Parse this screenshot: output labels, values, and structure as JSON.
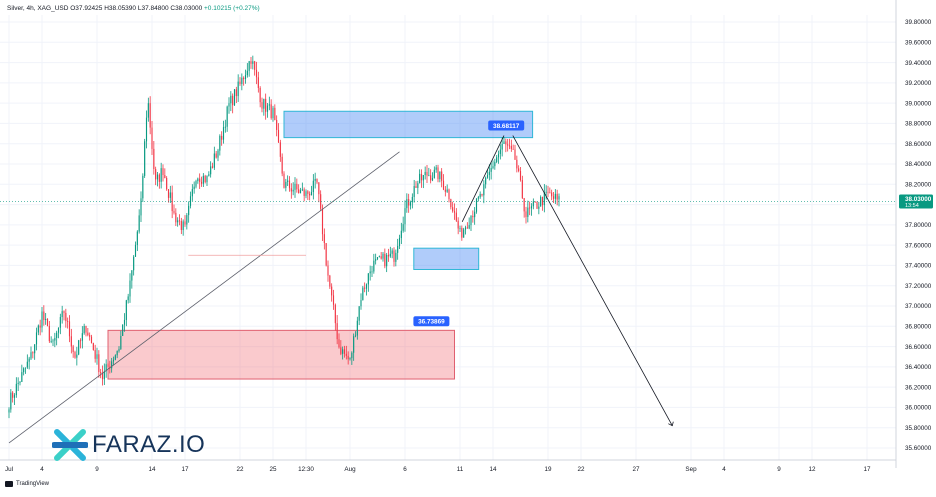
{
  "header": {
    "symbol": "Silver, 4h, XAG_USD",
    "open": "O37.92425",
    "high": "H38.05390",
    "low": "L37.84800",
    "close": "C38.03000",
    "change": "+0.10215 (+0.27%)"
  },
  "price_tag": {
    "value": "38.03000",
    "countdown": "13:54"
  },
  "watermark": {
    "brand": "FARAZ.IO"
  },
  "footer": {
    "tradingview": "TradingView"
  },
  "chart_data": {
    "type": "candlestick",
    "y_range": [
      35.5,
      39.9
    ],
    "y_ticks": [
      "39.80000",
      "39.60000",
      "39.40000",
      "39.20000",
      "39.00000",
      "38.80000",
      "38.60000",
      "38.40000",
      "38.20000",
      "38.00000",
      "37.80000",
      "37.60000",
      "37.40000",
      "37.20000",
      "37.00000",
      "36.80000",
      "36.60000",
      "36.40000",
      "36.20000",
      "36.00000",
      "35.80000",
      "35.60000"
    ],
    "x_ticks": [
      {
        "label": "Jul",
        "day": 1
      },
      {
        "label": "4",
        "day": 4
      },
      {
        "label": "9",
        "day": 9
      },
      {
        "label": "14",
        "day": 14
      },
      {
        "label": "17",
        "day": 17
      },
      {
        "label": "22",
        "day": 22
      },
      {
        "label": "25",
        "day": 25
      },
      {
        "label": "12:30",
        "day": 28
      },
      {
        "label": "Aug",
        "day": 32
      },
      {
        "label": "6",
        "day": 37
      },
      {
        "label": "11",
        "day": 42
      },
      {
        "label": "14",
        "day": 45
      },
      {
        "label": "19",
        "day": 50
      },
      {
        "label": "22",
        "day": 53
      },
      {
        "label": "27",
        "day": 58
      },
      {
        "label": "Sep",
        "day": 63
      },
      {
        "label": "4",
        "day": 66
      },
      {
        "label": "9",
        "day": 71
      },
      {
        "label": "12",
        "day": 74
      },
      {
        "label": "17",
        "day": 79
      }
    ],
    "price_path": [
      [
        1,
        36.05
      ],
      [
        3,
        36.5
      ],
      [
        4,
        36.92
      ],
      [
        5,
        36.6
      ],
      [
        6,
        36.95
      ],
      [
        7,
        36.5
      ],
      [
        8,
        36.8
      ],
      [
        9.5,
        36.3
      ],
      [
        11,
        36.6
      ],
      [
        12,
        37.2
      ],
      [
        13,
        38.0
      ],
      [
        13.6,
        39.07
      ],
      [
        14.3,
        38.2
      ],
      [
        15,
        38.35
      ],
      [
        16,
        37.9
      ],
      [
        17,
        37.75
      ],
      [
        18,
        38.3
      ],
      [
        19,
        38.25
      ],
      [
        20,
        38.55
      ],
      [
        21,
        38.98
      ],
      [
        22,
        39.18
      ],
      [
        23,
        39.45
      ],
      [
        24,
        39.0
      ],
      [
        25,
        38.9
      ],
      [
        26,
        38.2
      ],
      [
        27,
        38.15
      ],
      [
        28,
        38.1
      ],
      [
        29,
        38.2
      ],
      [
        30,
        37.3
      ],
      [
        31,
        36.6
      ],
      [
        32,
        36.45
      ],
      [
        33,
        37.1
      ],
      [
        34,
        37.4
      ],
      [
        35,
        37.45
      ],
      [
        36,
        37.5
      ],
      [
        37,
        37.95
      ],
      [
        38,
        38.2
      ],
      [
        39,
        38.3
      ],
      [
        40,
        38.3
      ],
      [
        41,
        38.1
      ],
      [
        42,
        37.7
      ],
      [
        43,
        37.9
      ],
      [
        44,
        38.1
      ],
      [
        45,
        38.4
      ],
      [
        46,
        38.6
      ],
      [
        47,
        38.45
      ],
      [
        48,
        37.9
      ],
      [
        49,
        38.0
      ],
      [
        50,
        38.1
      ],
      [
        51,
        38.03
      ]
    ],
    "zones": [
      {
        "kind": "supply",
        "day_start": 26.0,
        "day_end": 48.6,
        "price_top": 38.92,
        "price_bottom": 38.66,
        "label": ""
      },
      {
        "kind": "demand",
        "day_start": 37.8,
        "day_end": 43.7,
        "price_top": 37.57,
        "price_bottom": 37.36,
        "label": ""
      },
      {
        "kind": "demand",
        "day_start": 10.0,
        "day_end": 41.5,
        "price_top": 36.76,
        "price_bottom": 36.28,
        "label": ""
      }
    ],
    "annotations": [
      {
        "text": "38.68117",
        "day": 46.2,
        "price": 38.78
      },
      {
        "text": "36.73869",
        "day": 39.4,
        "price": 36.85
      }
    ],
    "lines": [
      {
        "from": [
          1,
          35.65
        ],
        "to": [
          36.5,
          38.52
        ],
        "color": "#5d606b"
      },
      {
        "from": [
          17.3,
          37.5
        ],
        "to": [
          28.0,
          37.5
        ],
        "color": "#f0a0a0"
      },
      {
        "from": [
          42.2,
          37.83
        ],
        "to": [
          46.0,
          38.68
        ],
        "color": "#131722"
      },
      {
        "from": [
          46.8,
          38.68
        ],
        "to": [
          61.3,
          35.82
        ],
        "color": "#131722"
      }
    ],
    "current_price": 38.03
  }
}
